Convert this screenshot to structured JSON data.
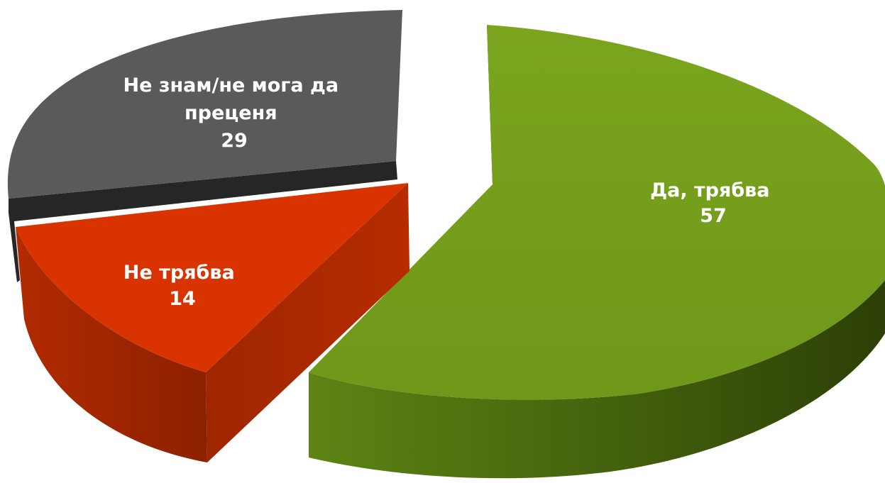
{
  "chart_data": {
    "type": "pie",
    "title": "",
    "slices": [
      {
        "label": "Да, трябва",
        "value": 57,
        "color": "#76a01b"
      },
      {
        "label": "Не трябва",
        "value": 14,
        "color": "#d83300"
      },
      {
        "label": "Не знам/не мога да преценя",
        "value": 29,
        "color": "#5a5a5a"
      }
    ],
    "label_lines": [
      [
        "Да, трябва",
        "57"
      ],
      [
        "Не трябва",
        "14"
      ],
      [
        "Не знам/не мога да",
        "преценя",
        "29"
      ]
    ],
    "style": "3d-exploded",
    "legend": "none"
  }
}
